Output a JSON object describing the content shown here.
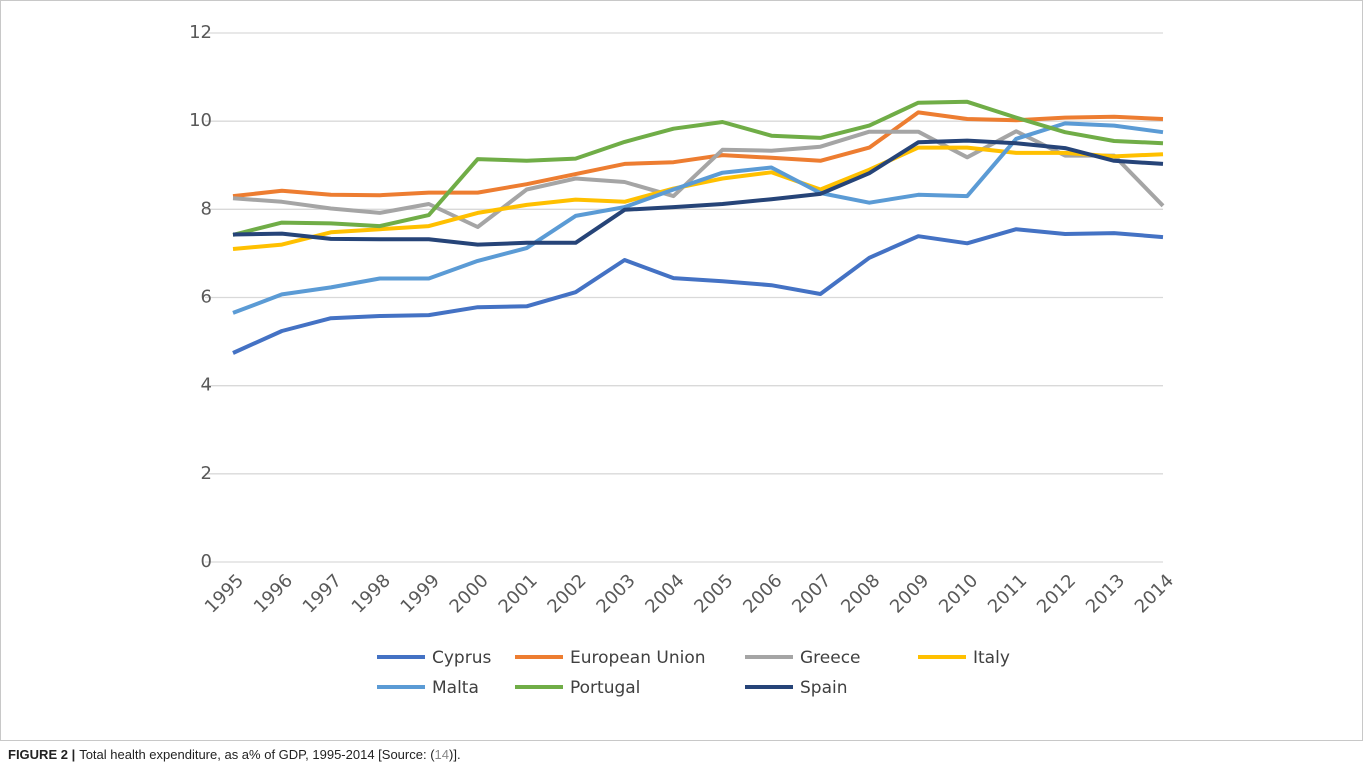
{
  "chart_data": {
    "type": "line",
    "categories": [
      "1995",
      "1996",
      "1997",
      "1998",
      "1999",
      "2000",
      "2001",
      "2002",
      "2003",
      "2004",
      "2005",
      "2006",
      "2007",
      "2008",
      "2009",
      "2010",
      "2011",
      "2012",
      "2013",
      "2014"
    ],
    "series": [
      {
        "name": "Cyprus",
        "color": "#4472c4",
        "values": [
          4.74,
          5.24,
          5.53,
          5.58,
          5.6,
          5.78,
          5.8,
          6.12,
          6.85,
          6.44,
          6.37,
          6.28,
          6.08,
          6.9,
          7.39,
          7.23,
          7.55,
          7.44,
          7.46,
          7.37
        ]
      },
      {
        "name": "European Union",
        "color": "#ed7d31",
        "values": [
          8.3,
          8.42,
          8.33,
          8.32,
          8.38,
          8.38,
          8.57,
          8.8,
          9.03,
          9.07,
          9.23,
          9.17,
          9.1,
          9.4,
          10.2,
          10.05,
          10.02,
          10.08,
          10.1,
          10.05
        ]
      },
      {
        "name": "Greece",
        "color": "#a5a5a5",
        "values": [
          8.25,
          8.17,
          8.02,
          7.92,
          8.12,
          7.6,
          8.45,
          8.7,
          8.62,
          8.3,
          9.35,
          9.33,
          9.42,
          9.76,
          9.76,
          9.18,
          9.77,
          9.22,
          9.22,
          8.08
        ]
      },
      {
        "name": "Italy",
        "color": "#ffc000",
        "values": [
          7.1,
          7.2,
          7.48,
          7.55,
          7.62,
          7.92,
          8.1,
          8.22,
          8.17,
          8.47,
          8.7,
          8.84,
          8.45,
          8.9,
          9.4,
          9.4,
          9.28,
          9.28,
          9.2,
          9.25
        ]
      },
      {
        "name": "Malta",
        "color": "#5b9bd5",
        "values": [
          5.65,
          6.07,
          6.23,
          6.43,
          6.43,
          6.83,
          7.12,
          7.85,
          8.05,
          8.45,
          8.83,
          8.95,
          8.37,
          8.15,
          8.33,
          8.3,
          9.6,
          9.95,
          9.9,
          9.75
        ]
      },
      {
        "name": "Portugal",
        "color": "#70ad47",
        "values": [
          7.42,
          7.7,
          7.68,
          7.62,
          7.87,
          9.14,
          9.1,
          9.15,
          9.53,
          9.83,
          9.98,
          9.67,
          9.62,
          9.9,
          10.42,
          10.44,
          10.08,
          9.75,
          9.55,
          9.5
        ]
      },
      {
        "name": "Spain",
        "color": "#264478",
        "values": [
          7.43,
          7.45,
          7.33,
          7.32,
          7.32,
          7.2,
          7.24,
          7.24,
          7.99,
          8.05,
          8.12,
          8.23,
          8.35,
          8.82,
          9.52,
          9.56,
          9.5,
          9.39,
          9.1,
          9.03
        ]
      }
    ],
    "ylim": [
      0,
      12
    ],
    "yticks": [
      0,
      2,
      4,
      6,
      8,
      10,
      12
    ],
    "grid": true,
    "legend": "bottom",
    "caption": {
      "label": "FIGURE 2 |",
      "text": "Total health expenditure, as a% of GDP, 1995-2014 [Source: (",
      "ref": "14",
      "end": ")]."
    }
  }
}
